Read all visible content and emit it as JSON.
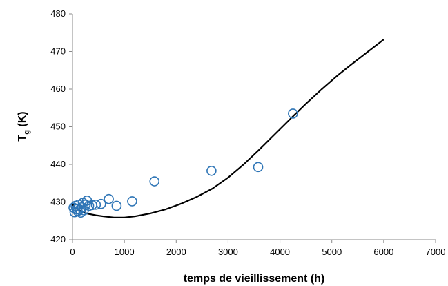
{
  "chart_data": {
    "type": "scatter",
    "xlabel": "temps de vieillissement (h)",
    "ylabel": {
      "main": "T",
      "sub": "g",
      "unit": " (K)"
    },
    "xlim": [
      0,
      7000
    ],
    "ylim": [
      420,
      480
    ],
    "x_ticks": [
      0,
      1000,
      2000,
      3000,
      4000,
      5000,
      6000,
      7000
    ],
    "y_ticks": [
      420,
      430,
      440,
      450,
      460,
      470,
      480
    ],
    "grid": false,
    "legend": "none",
    "series": [
      {
        "kind": "line",
        "color": "#000000",
        "points": [
          [
            0,
            429.4
          ],
          [
            50,
            428.6
          ],
          [
            100,
            428.0
          ],
          [
            200,
            427.3
          ],
          [
            300,
            426.9
          ],
          [
            450,
            426.5
          ],
          [
            600,
            426.2
          ],
          [
            800,
            425.9
          ],
          [
            1000,
            425.9
          ],
          [
            1200,
            426.2
          ],
          [
            1500,
            427.0
          ],
          [
            1800,
            428.1
          ],
          [
            2100,
            429.6
          ],
          [
            2400,
            431.4
          ],
          [
            2700,
            433.6
          ],
          [
            3000,
            436.5
          ],
          [
            3300,
            440.0
          ],
          [
            3600,
            443.9
          ],
          [
            3900,
            448.0
          ],
          [
            4200,
            452.1
          ],
          [
            4500,
            456.1
          ],
          [
            4800,
            459.9
          ],
          [
            5100,
            463.5
          ],
          [
            5400,
            466.8
          ],
          [
            5700,
            470.0
          ],
          [
            6000,
            473.2
          ]
        ]
      },
      {
        "kind": "scatter",
        "color": "#2E75B6",
        "marker": "open-circle",
        "points": [
          [
            20,
            428.5
          ],
          [
            40,
            427.3
          ],
          [
            60,
            429.0
          ],
          [
            80,
            428.1
          ],
          [
            100,
            427.6
          ],
          [
            120,
            429.3
          ],
          [
            140,
            428.0
          ],
          [
            160,
            427.2
          ],
          [
            180,
            428.6
          ],
          [
            200,
            429.8
          ],
          [
            220,
            427.8
          ],
          [
            250,
            429.3
          ],
          [
            280,
            430.4
          ],
          [
            320,
            429.0
          ],
          [
            380,
            429.2
          ],
          [
            450,
            429.3
          ],
          [
            550,
            429.5
          ],
          [
            700,
            430.8
          ],
          [
            850,
            429.0
          ],
          [
            1150,
            430.2
          ],
          [
            1580,
            435.5
          ],
          [
            2680,
            438.3
          ],
          [
            3580,
            439.3
          ],
          [
            4250,
            453.5
          ]
        ]
      }
    ]
  }
}
